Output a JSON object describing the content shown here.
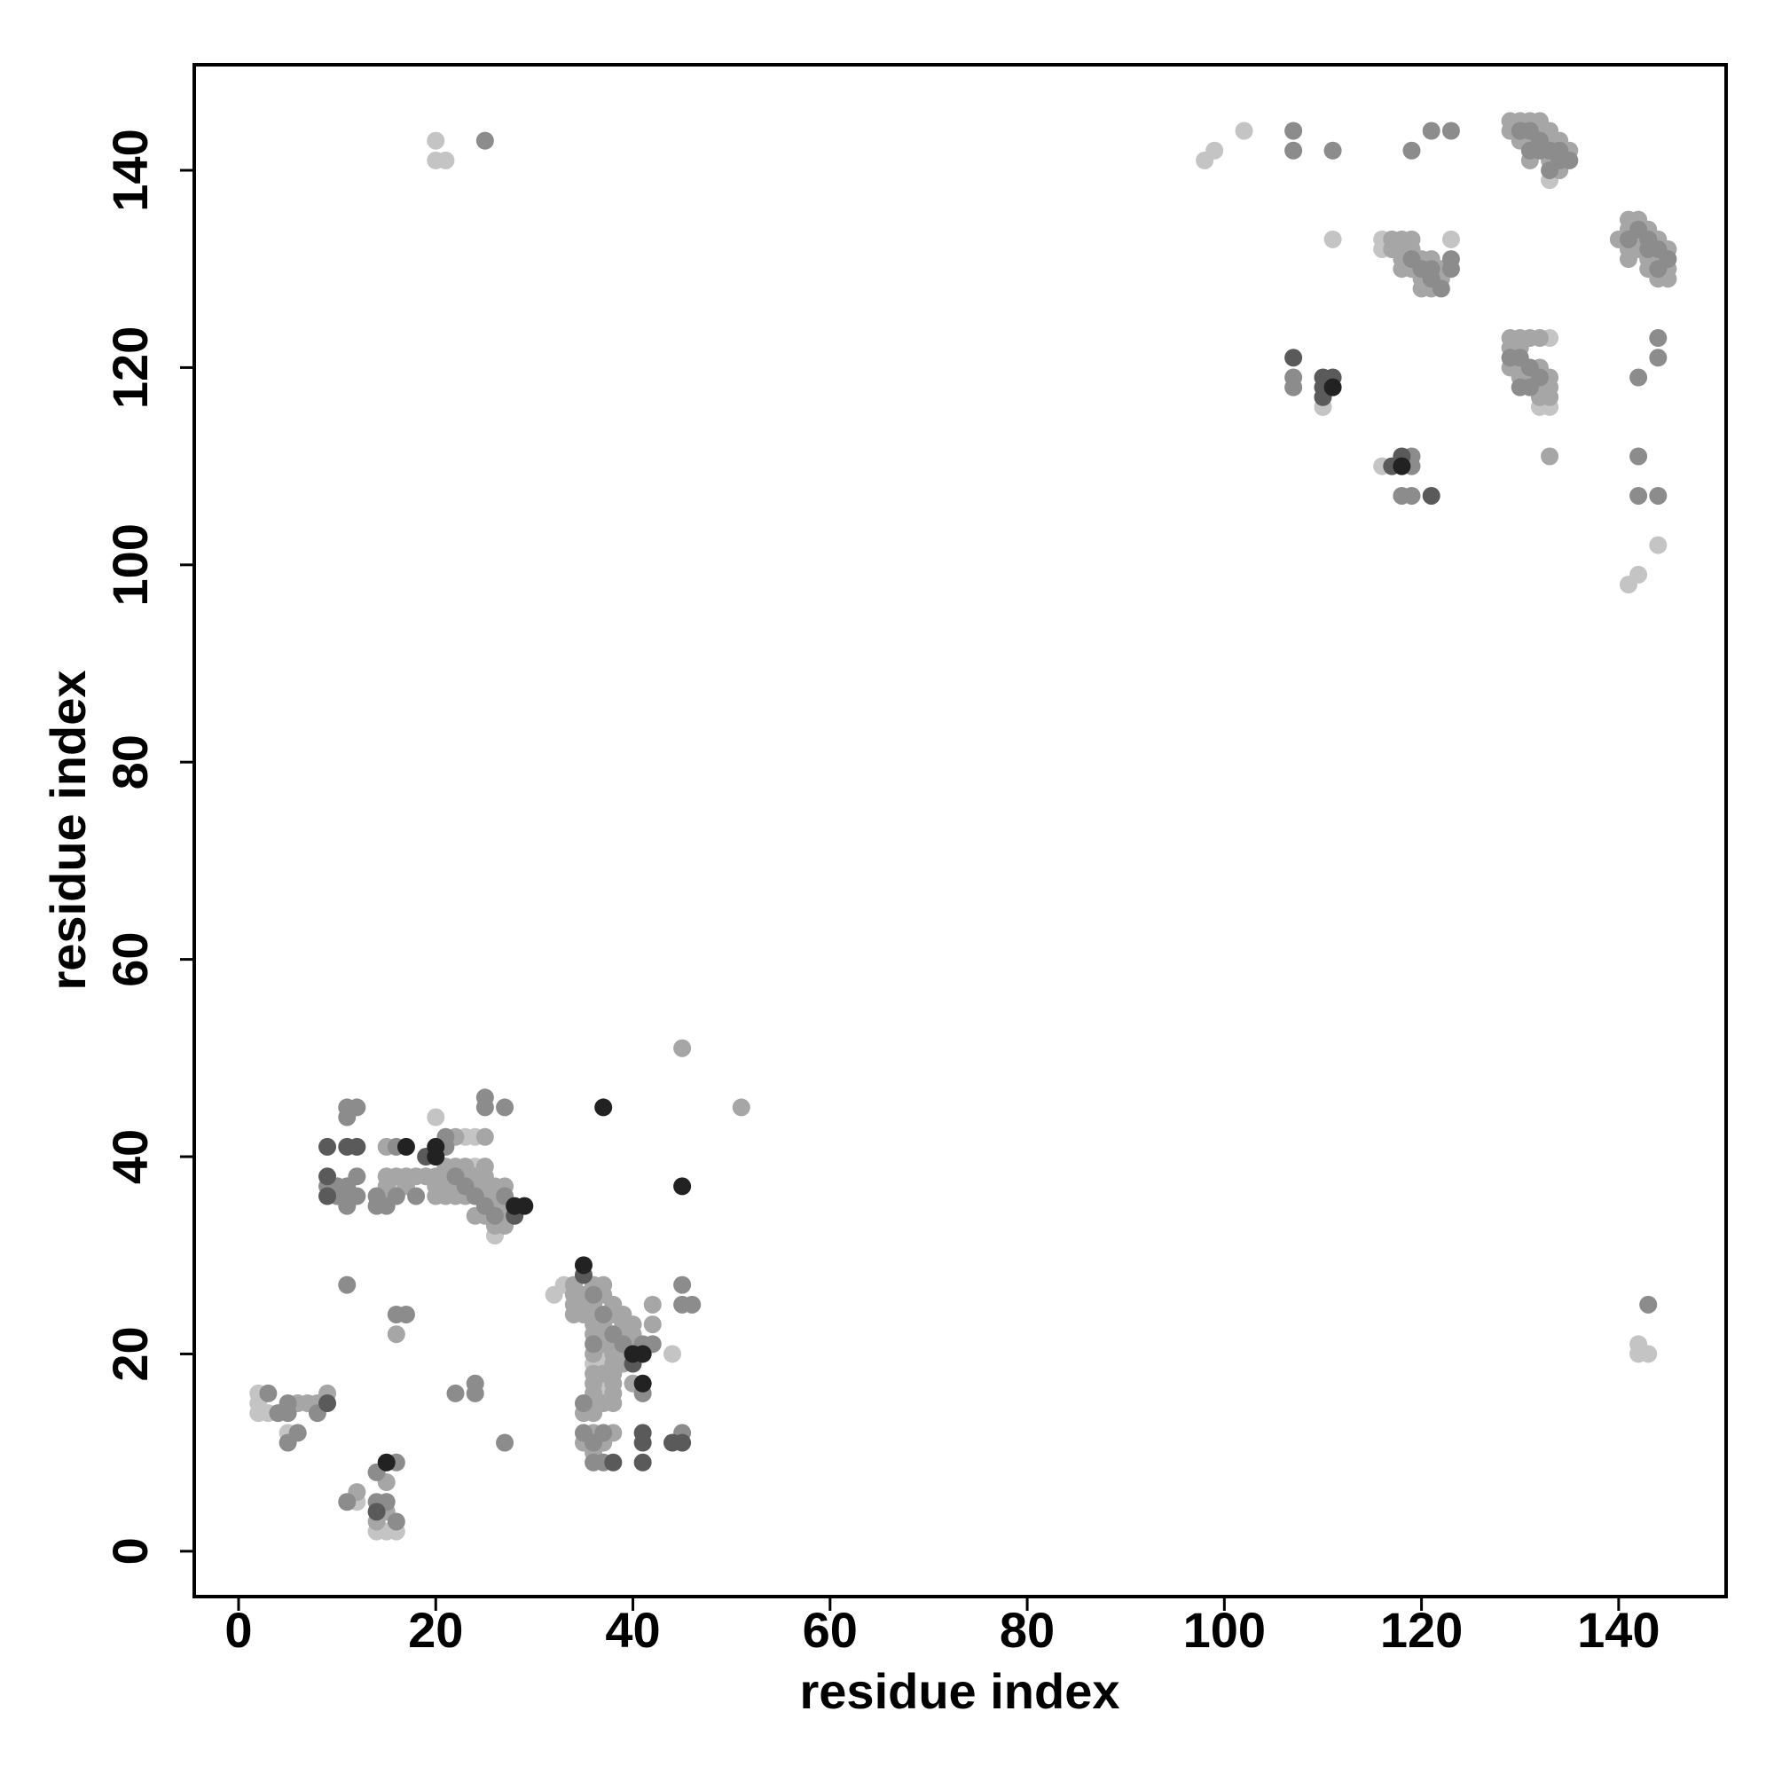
{
  "chart_data": {
    "type": "scatter",
    "xlabel": "residue index",
    "ylabel": "residue index",
    "xlim": [
      -4.5,
      150.9
    ],
    "ylim": [
      -4.6,
      150.7
    ],
    "xticks": [
      0,
      20,
      40,
      60,
      80,
      100,
      120,
      140
    ],
    "yticks": [
      0,
      20,
      40,
      60,
      80,
      100,
      120,
      140
    ],
    "series": [
      {
        "color": "#c4c4c4",
        "x": [
          20,
          20,
          21,
          98,
          99,
          102,
          111,
          116,
          123,
          116,
          133,
          110,
          116,
          144,
          142,
          141,
          142,
          142,
          143,
          133,
          133,
          132,
          20,
          23,
          24,
          2,
          2,
          2,
          3,
          5,
          12,
          14,
          15,
          16,
          32,
          33,
          44,
          16,
          24,
          26,
          37,
          37,
          37,
          36,
          37
        ],
        "y": [
          143,
          141,
          141,
          141,
          142,
          144,
          133,
          133,
          133,
          132,
          123,
          116,
          110,
          102,
          99,
          98,
          21,
          20,
          20,
          139,
          116,
          116,
          44,
          42,
          42,
          16,
          15,
          14,
          14,
          12,
          5,
          2,
          2,
          2,
          26,
          27,
          20,
          37,
          39,
          32,
          20,
          17,
          16,
          19,
          19
        ]
      },
      {
        "color": "#a6a6a6",
        "x": [
          45,
          51,
          15,
          22,
          25,
          6,
          7,
          8,
          9,
          16,
          12,
          15,
          15,
          14,
          34,
          40,
          42,
          42,
          129,
          130,
          131,
          132,
          129,
          132,
          133,
          130,
          131,
          133,
          134,
          135,
          131,
          133,
          134,
          117,
          118,
          119,
          117,
          118,
          119,
          118,
          120,
          121,
          118,
          119,
          122,
          120,
          122,
          120,
          121,
          141,
          142,
          141,
          143,
          141,
          142,
          144,
          142,
          145,
          141,
          143,
          144,
          143,
          145,
          144,
          145,
          140,
          129,
          130,
          131,
          132,
          129,
          130,
          129,
          130,
          132,
          130,
          131,
          133,
          132,
          133,
          132,
          133,
          133,
          35,
          37,
          37,
          36,
          34,
          34,
          35,
          36,
          38,
          34,
          35,
          36,
          38,
          39,
          36,
          37,
          39,
          40,
          36,
          37,
          39,
          40,
          37,
          38,
          40,
          36,
          38,
          39,
          38,
          39,
          36,
          37,
          38,
          36,
          38,
          36,
          38,
          36,
          37,
          38,
          35,
          36,
          36,
          38,
          35,
          37,
          36,
          20,
          21,
          23,
          24,
          25,
          26,
          27,
          15,
          17,
          20,
          21,
          22,
          24,
          25,
          15,
          20,
          21,
          22,
          23,
          25,
          26,
          21,
          22,
          23,
          25,
          26,
          27,
          24,
          25,
          27,
          26,
          27,
          15,
          16,
          17,
          18,
          19
        ],
        "y": [
          51,
          45,
          41,
          42,
          42,
          15,
          15,
          15,
          16,
          22,
          6,
          7,
          4,
          3,
          27,
          17,
          25,
          23,
          145,
          145,
          145,
          145,
          144,
          144,
          144,
          143,
          143,
          143,
          143,
          142,
          141,
          141,
          140,
          133,
          133,
          133,
          132,
          132,
          132,
          131,
          131,
          131,
          130,
          130,
          130,
          129,
          129,
          128,
          128,
          135,
          135,
          134,
          134,
          132,
          133,
          133,
          132,
          132,
          131,
          131,
          131,
          130,
          130,
          129,
          129,
          133,
          123,
          123,
          123,
          123,
          122,
          122,
          120,
          120,
          120,
          119,
          119,
          119,
          118,
          118,
          117,
          117,
          111,
          26,
          26,
          27,
          27,
          26,
          25,
          25,
          25,
          25,
          24,
          24,
          24,
          24,
          24,
          23,
          23,
          23,
          23,
          22,
          22,
          22,
          22,
          21,
          21,
          21,
          20,
          20,
          20,
          19,
          19,
          18,
          18,
          18,
          17,
          17,
          16,
          16,
          15,
          15,
          15,
          14,
          14,
          12,
          12,
          11,
          11,
          10,
          38,
          38,
          38,
          38,
          38,
          37,
          37,
          37,
          37,
          37,
          37,
          37,
          37,
          37,
          36,
          36,
          36,
          36,
          36,
          36,
          36,
          39,
          39,
          39,
          39,
          35,
          35,
          34,
          34,
          34,
          33,
          33,
          38,
          38,
          38,
          38,
          38
        ]
      },
      {
        "color": "#8c8c8c",
        "x": [
          25,
          107,
          107,
          111,
          119,
          121,
          123,
          123,
          107,
          107,
          144,
          144,
          142,
          119,
          119,
          118,
          119,
          142,
          142,
          144,
          143,
          11,
          12,
          11,
          25,
          25,
          27,
          16,
          21,
          21,
          12,
          9,
          10,
          11,
          10,
          11,
          12,
          11,
          14,
          14,
          15,
          11,
          16,
          17,
          3,
          4,
          5,
          5,
          5,
          6,
          8,
          22,
          24,
          24,
          27,
          11,
          14,
          16,
          14,
          15,
          16,
          41,
          41,
          42,
          45,
          45,
          46,
          45,
          131,
          132,
          133,
          134,
          133,
          130,
          132,
          134,
          135,
          131,
          119,
          120,
          121,
          122,
          121,
          123,
          142,
          143,
          144,
          145,
          141,
          143,
          144,
          130,
          131,
          132,
          130,
          131,
          129,
          36,
          37,
          38,
          39,
          36,
          37,
          36,
          36,
          37,
          35,
          35,
          22,
          24,
          25,
          26,
          27,
          23,
          16,
          18
        ],
        "y": [
          143,
          144,
          142,
          142,
          142,
          144,
          144,
          131,
          119,
          118,
          123,
          121,
          119,
          111,
          110,
          107,
          107,
          111,
          107,
          107,
          25,
          45,
          45,
          44,
          46,
          45,
          45,
          41,
          41,
          42,
          38,
          37,
          37,
          37,
          36,
          36,
          36,
          35,
          36,
          35,
          35,
          27,
          24,
          24,
          16,
          14,
          15,
          14,
          11,
          12,
          14,
          16,
          17,
          16,
          11,
          5,
          8,
          9,
          5,
          5,
          3,
          16,
          21,
          21,
          27,
          25,
          25,
          12,
          144,
          143,
          142,
          141,
          140,
          144,
          142,
          142,
          141,
          142,
          131,
          130,
          129,
          128,
          130,
          130,
          134,
          133,
          132,
          131,
          133,
          132,
          130,
          121,
          120,
          119,
          118,
          118,
          121,
          26,
          24,
          22,
          21,
          21,
          12,
          11,
          9,
          9,
          15,
          12,
          38,
          36,
          35,
          34,
          36,
          37,
          36,
          36
        ]
      },
      {
        "color": "#5a5a5a",
        "x": [
          9,
          11,
          12,
          19,
          9,
          9,
          28,
          9,
          35,
          38,
          40,
          41,
          41,
          41,
          44,
          45,
          14,
          107,
          110,
          111,
          110,
          110,
          117,
          118,
          121
        ],
        "y": [
          41,
          41,
          41,
          40,
          38,
          36,
          34,
          15,
          28,
          9,
          19,
          12,
          11,
          9,
          11,
          11,
          4,
          121,
          119,
          119,
          118,
          117,
          110,
          111,
          107
        ]
      },
      {
        "color": "#222222",
        "x": [
          17,
          20,
          20,
          29,
          28,
          40,
          41,
          41,
          35,
          37,
          45,
          111,
          118,
          15
        ],
        "y": [
          41,
          40,
          41,
          35,
          35,
          20,
          20,
          17,
          29,
          45,
          37,
          118,
          110,
          9
        ]
      }
    ]
  }
}
